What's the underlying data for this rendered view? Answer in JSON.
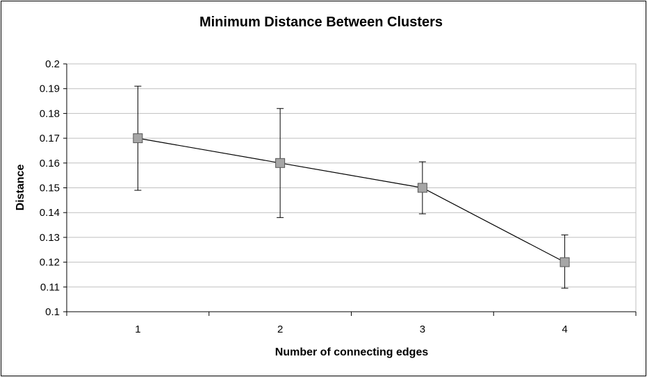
{
  "chart_data": {
    "type": "line",
    "title": "Minimum Distance Between Clusters",
    "xlabel": "Number of connecting edges",
    "ylabel": "Distance",
    "categories": [
      "1",
      "2",
      "3",
      "4"
    ],
    "series": [
      {
        "values": [
          0.17,
          0.16,
          0.15,
          0.12
        ],
        "error_upper": [
          0.191,
          0.182,
          0.1605,
          0.131
        ],
        "error_lower": [
          0.149,
          0.138,
          0.1395,
          0.1095
        ]
      }
    ],
    "ylim": [
      0.1,
      0.2
    ],
    "yticks": [
      "0.1",
      "0.11",
      "0.12",
      "0.13",
      "0.14",
      "0.15",
      "0.16",
      "0.17",
      "0.18",
      "0.19",
      "0.2"
    ],
    "grid": true,
    "legend": "none",
    "colors": {
      "line": "#000000",
      "marker_fill": "#a6a6a6",
      "marker_stroke": "#555555",
      "grid": "#bfbfbf"
    }
  }
}
